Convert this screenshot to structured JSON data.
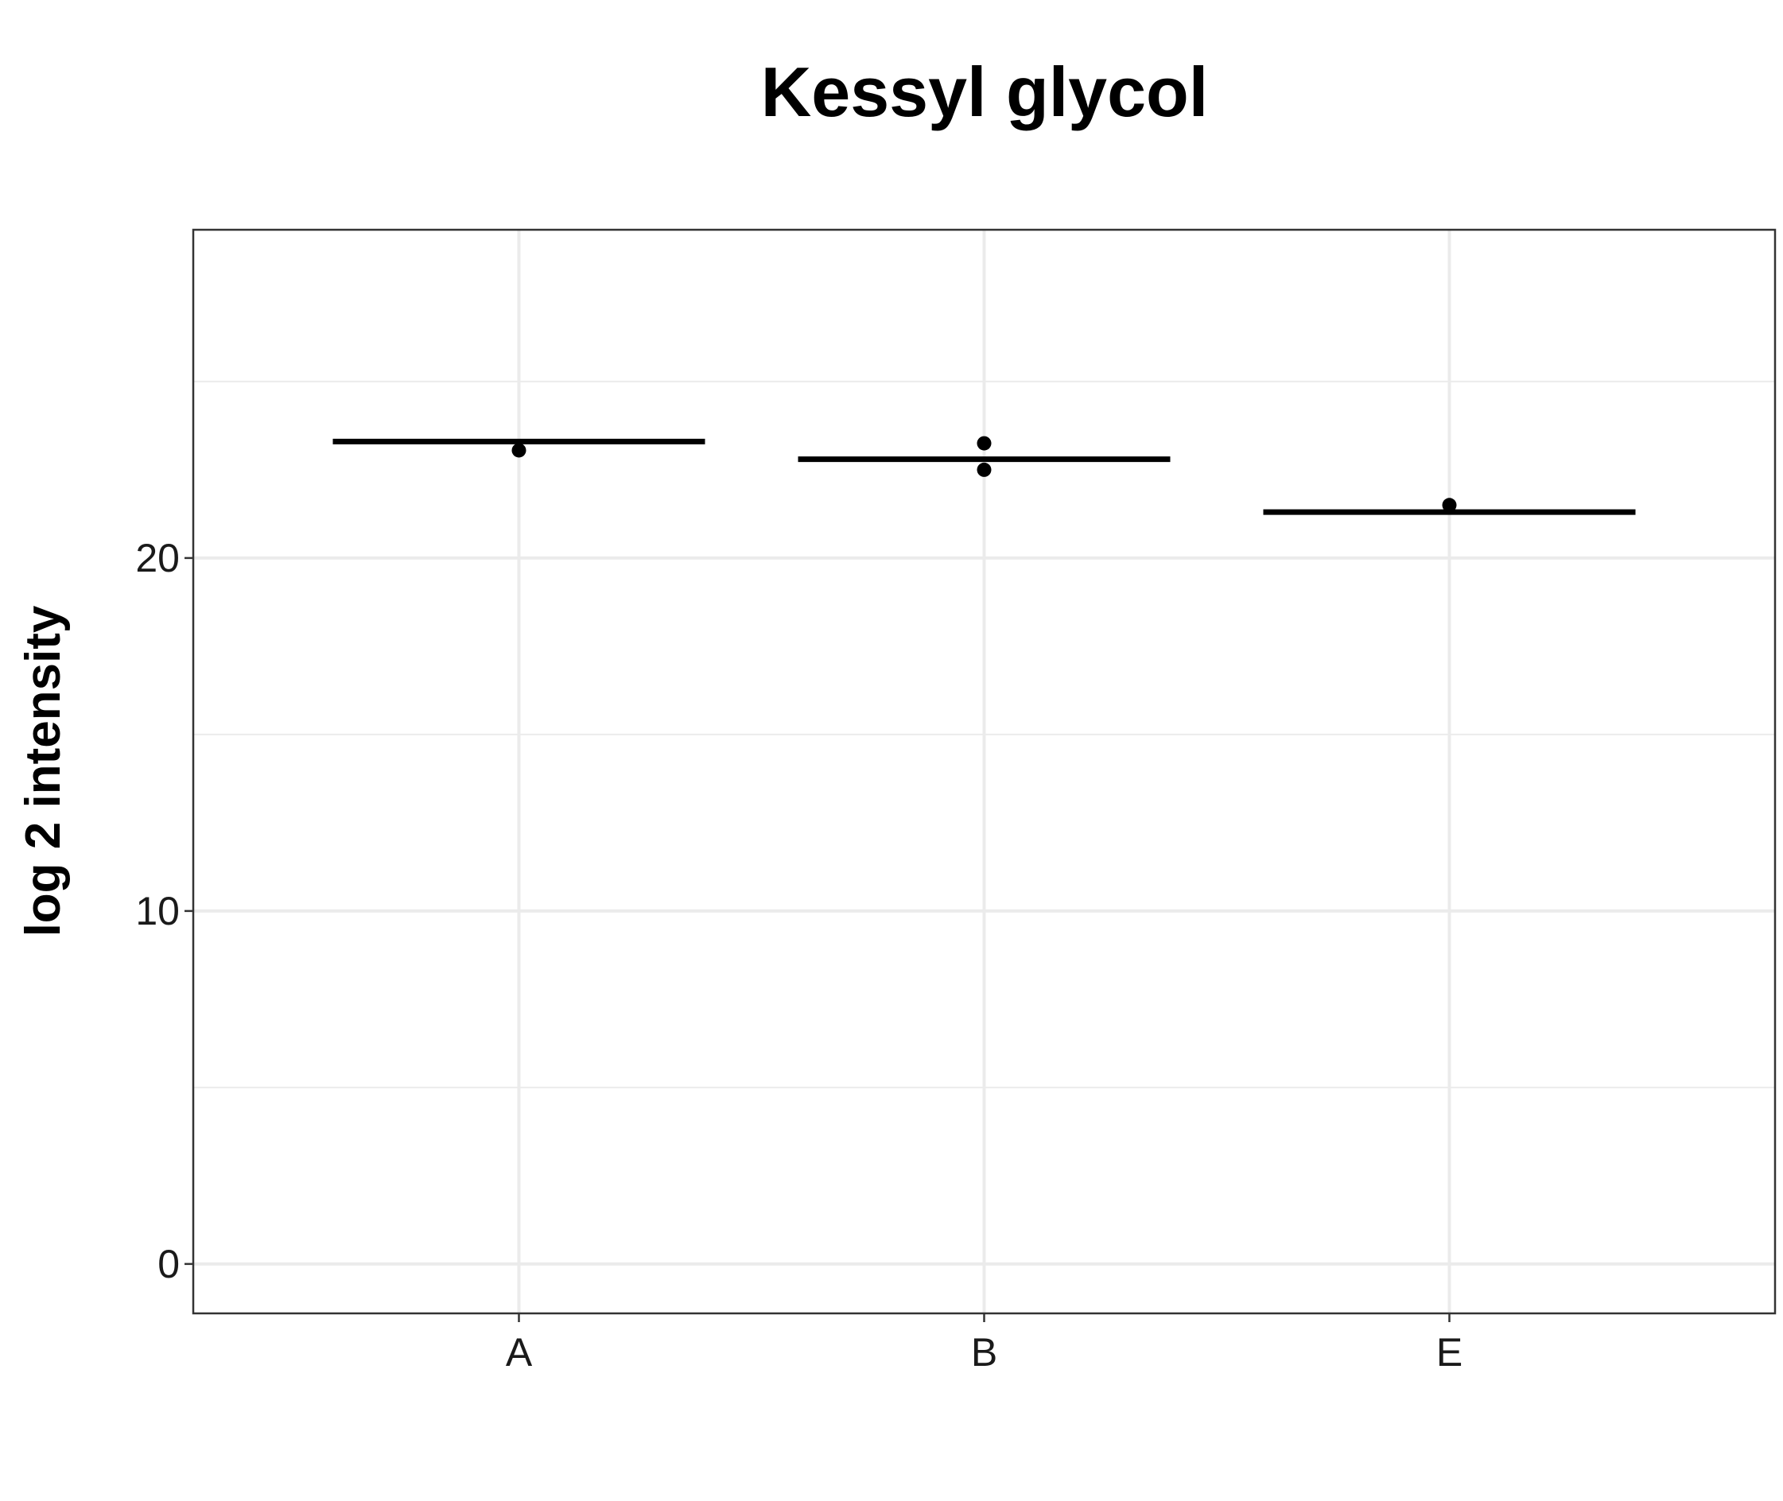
{
  "chart_data": {
    "type": "box",
    "title": "Kessyl glycol",
    "xlabel": "",
    "ylabel": "log 2 intensity",
    "categories": [
      "A",
      "B",
      "E"
    ],
    "medians": [
      23.3,
      22.8,
      21.3
    ],
    "points": [
      {
        "category": "A",
        "y": 23.05
      },
      {
        "category": "B",
        "y": 23.25
      },
      {
        "category": "B",
        "y": 22.5
      },
      {
        "category": "E",
        "y": 21.5
      }
    ],
    "ylim": [
      -1.4,
      29.3
    ],
    "yticks": [
      0,
      10,
      20
    ],
    "ytick_labels": [
      "0",
      "10",
      "20"
    ],
    "grid": true,
    "legend": "none",
    "colors": {
      "grid": "#ebebeb",
      "border": "#333333",
      "marks": "#000000"
    }
  }
}
